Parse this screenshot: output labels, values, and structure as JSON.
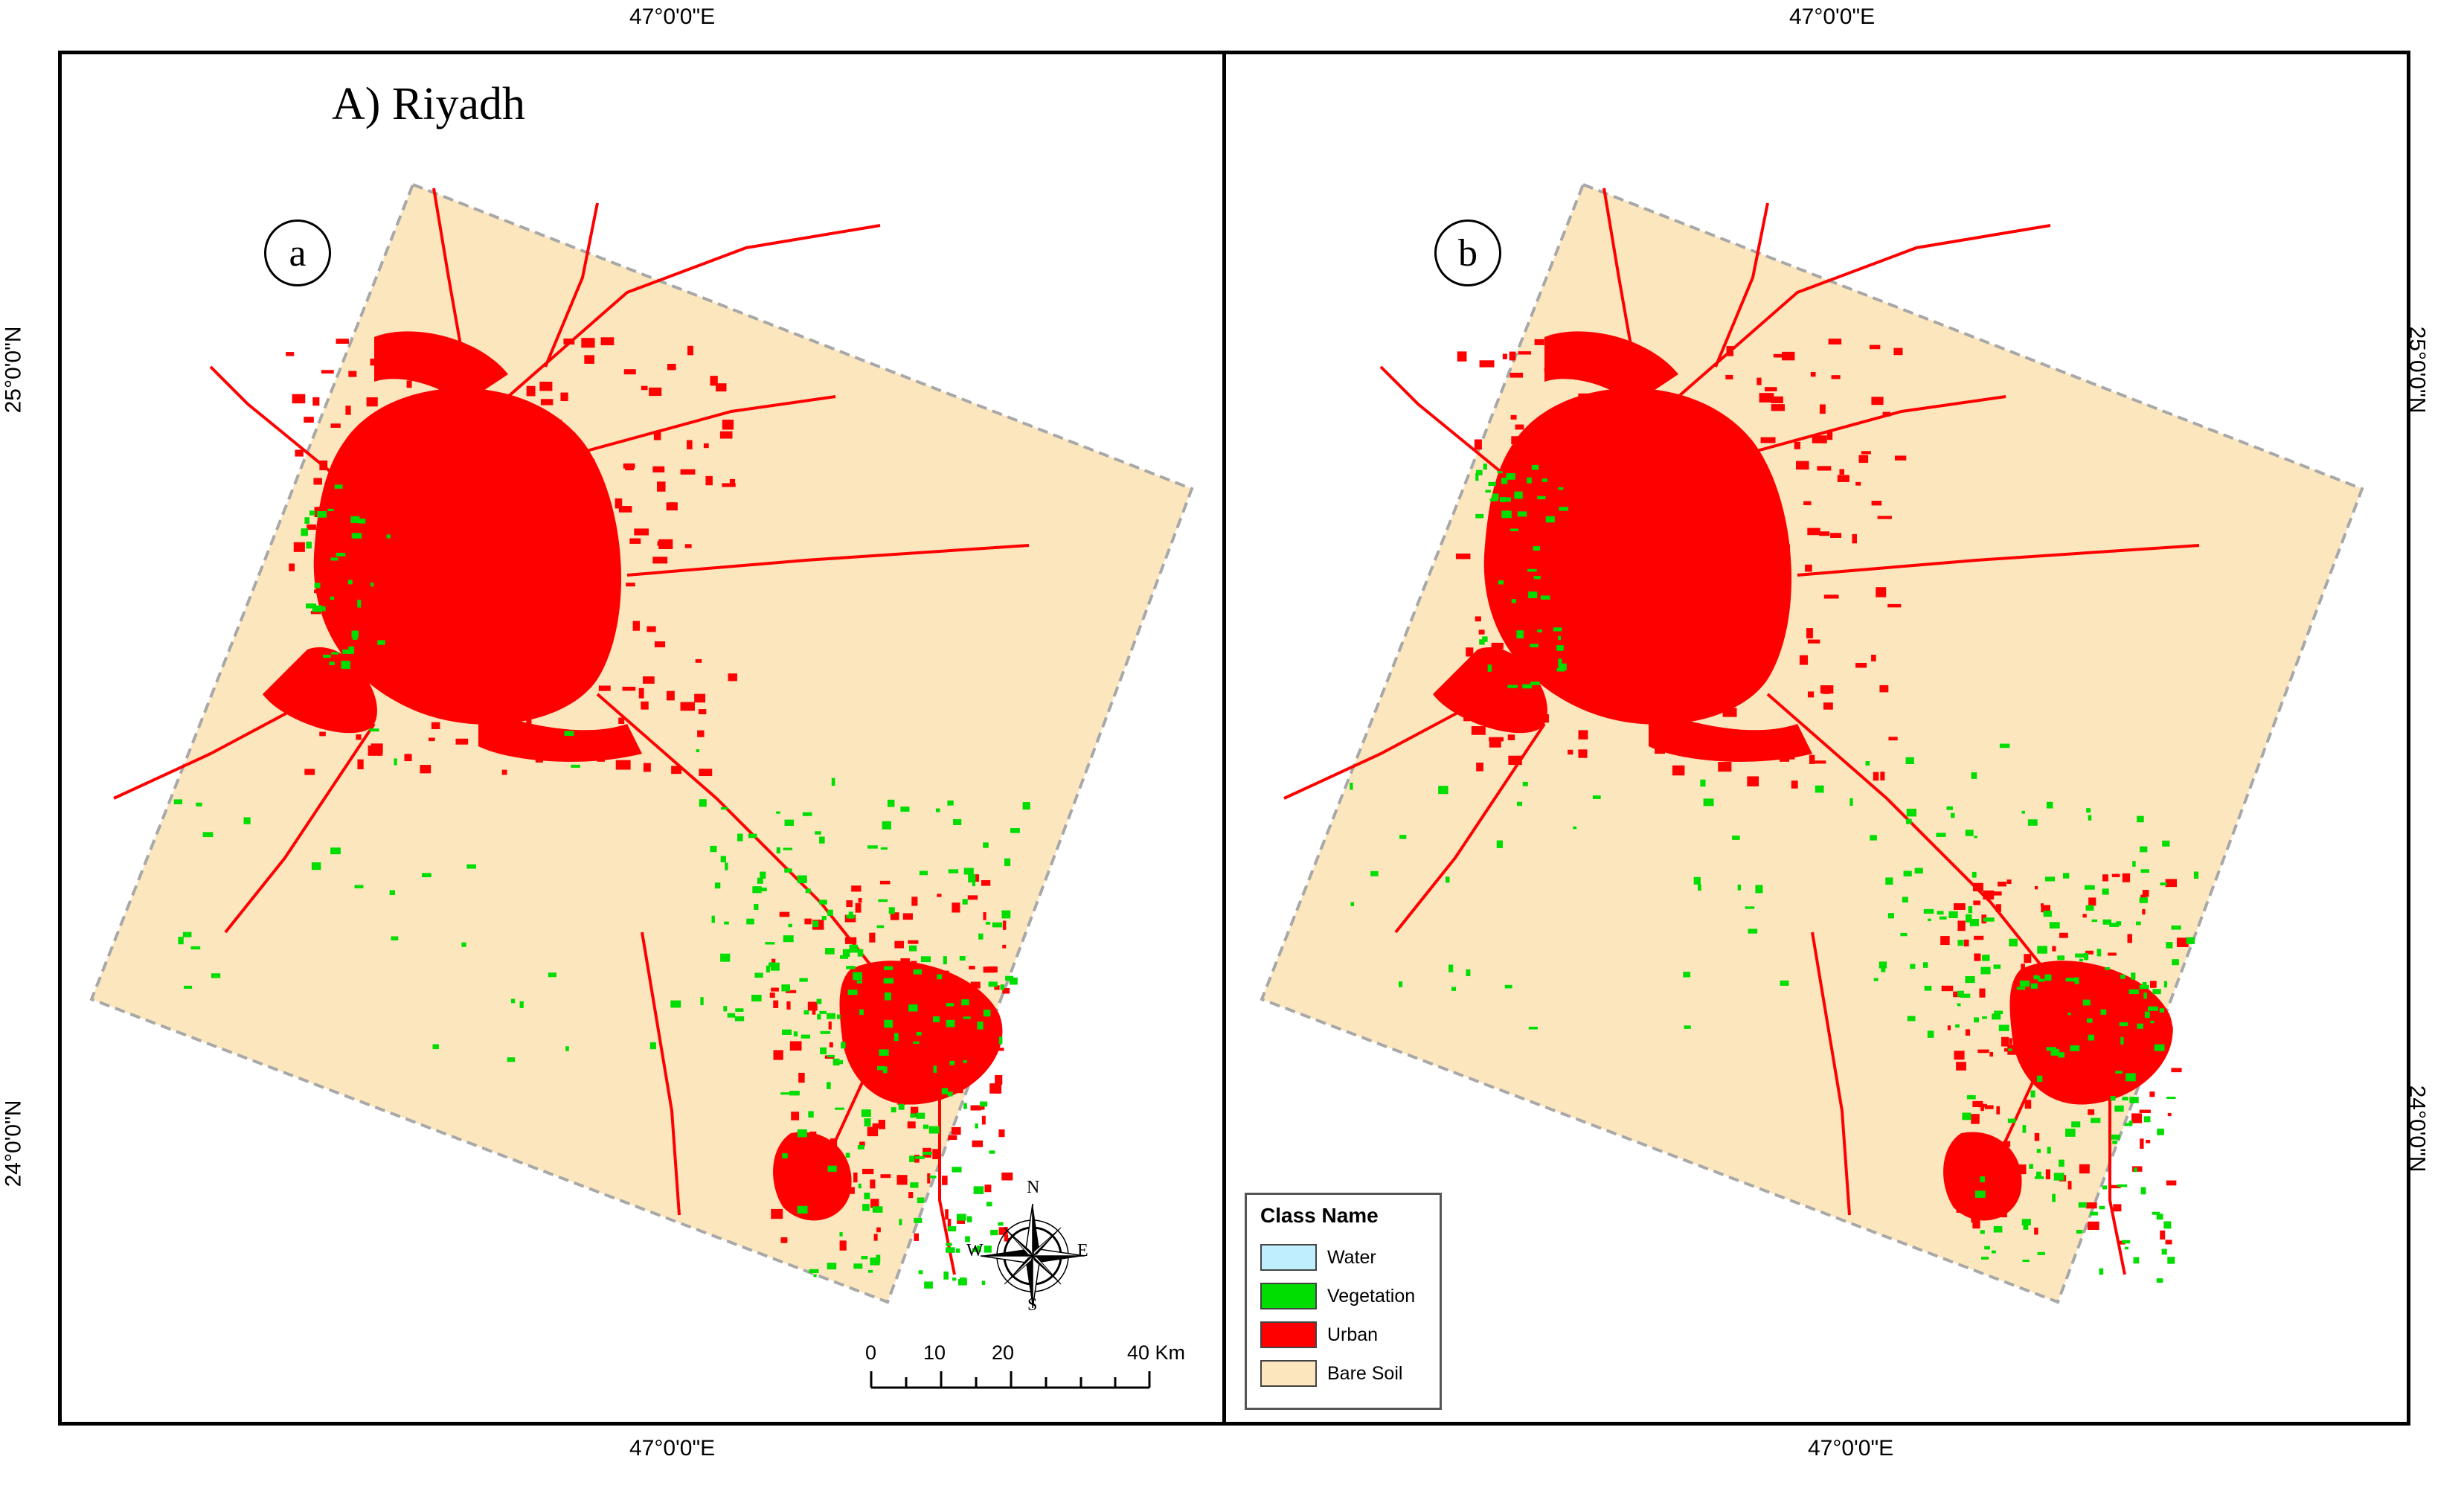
{
  "title": "A) Riyadh",
  "panels": [
    {
      "letter": "a"
    },
    {
      "letter": "b"
    }
  ],
  "coords": {
    "lon": "47°0'0\"E",
    "lat_top": "25°0'0\"N",
    "lat_bottom": "24°0'0\"N"
  },
  "legend": {
    "title": "Class Name",
    "items": [
      {
        "label": "Water",
        "color": "#BFEFFF"
      },
      {
        "label": "Vegetation",
        "color": "#00DD00"
      },
      {
        "label": "Urban",
        "color": "#FF0000"
      },
      {
        "label": "Bare Soil",
        "color": "#FBE6BE"
      }
    ]
  },
  "scale_bar": {
    "labels": [
      "0",
      "10",
      "20",
      "40 Km"
    ]
  },
  "compass": {
    "n": "N",
    "s": "S",
    "e": "E",
    "w": "W"
  },
  "colors": {
    "bare_soil": "#FBE6BE",
    "urban": "#FF0000",
    "vegetation": "#00DD00",
    "footprint_edge": "#A8A8A8"
  }
}
